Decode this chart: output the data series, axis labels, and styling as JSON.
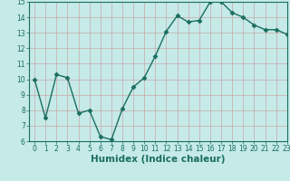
{
  "x": [
    0,
    1,
    2,
    3,
    4,
    5,
    6,
    7,
    8,
    9,
    10,
    11,
    12,
    13,
    14,
    15,
    16,
    17,
    18,
    19,
    20,
    21,
    22,
    23
  ],
  "y": [
    10,
    7.5,
    10.3,
    10.1,
    7.8,
    8.0,
    6.3,
    6.1,
    8.1,
    9.5,
    10.1,
    11.5,
    13.1,
    14.1,
    13.7,
    13.8,
    15.0,
    15.0,
    14.3,
    14.0,
    13.5,
    13.2,
    13.2,
    12.9
  ],
  "title": "",
  "xlabel": "Humidex (Indice chaleur)",
  "ylabel": "",
  "ylim": [
    6,
    15
  ],
  "xlim": [
    -0.5,
    23
  ],
  "bg_color": "#c5eae8",
  "grid_color": "#c8a8a8",
  "line_color": "#1a6e5e",
  "marker": "D",
  "marker_size": 2.5,
  "line_width": 1.0,
  "xlabel_fontsize": 7.5,
  "tick_fontsize": 5.5
}
